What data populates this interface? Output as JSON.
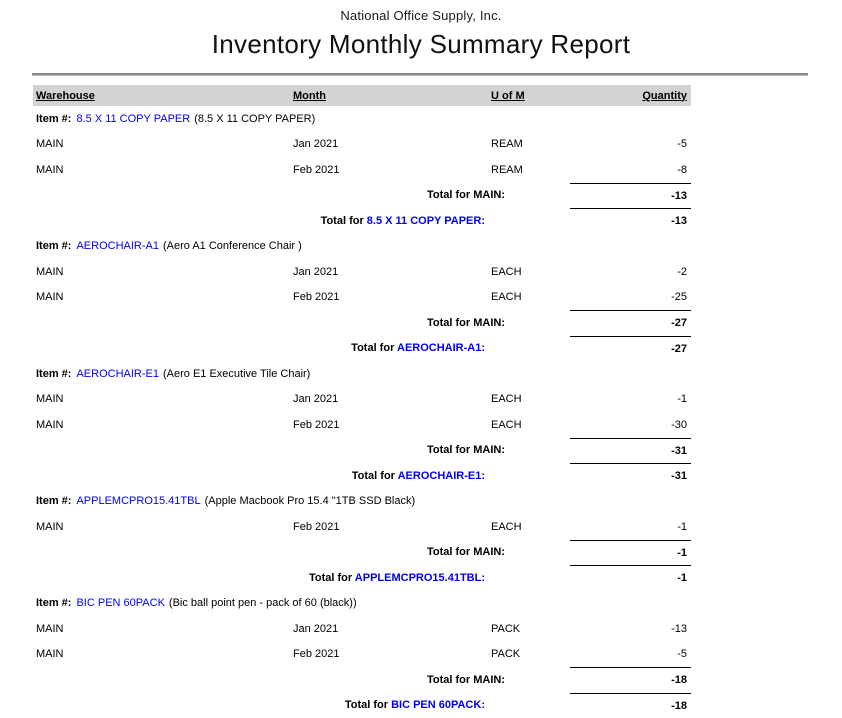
{
  "report": {
    "company_name": "National Office Supply, Inc.",
    "title": "Inventory Monthly Summary Report",
    "columns": {
      "warehouse": "Warehouse",
      "month": "Month",
      "uom": "U of M",
      "quantity": "Quantity"
    },
    "labels": {
      "item_prefix": "Item #:",
      "total_prefix": "Total for"
    },
    "colors": {
      "link_blue": "#0000ee",
      "header_band_gray": "#d3d3d3",
      "rule_gray": "#8a8a8a"
    },
    "items": [
      {
        "code": "8.5 X 11 COPY PAPER",
        "description": "(8.5 X 11 COPY PAPER)",
        "rows": [
          {
            "warehouse": "MAIN",
            "month": "Jan 2021",
            "uom": "REAM",
            "quantity": "-5"
          },
          {
            "warehouse": "MAIN",
            "month": "Feb 2021",
            "uom": "REAM",
            "quantity": "-8"
          }
        ],
        "warehouse_total": {
          "label": "Total for MAIN:",
          "quantity": "-13"
        },
        "item_total": {
          "quantity": "-13"
        }
      },
      {
        "code": "AEROCHAIR-A1",
        "description": "(Aero A1 Conference Chair )",
        "rows": [
          {
            "warehouse": "MAIN",
            "month": "Jan 2021",
            "uom": "EACH",
            "quantity": "-2"
          },
          {
            "warehouse": "MAIN",
            "month": "Feb 2021",
            "uom": "EACH",
            "quantity": "-25"
          }
        ],
        "warehouse_total": {
          "label": "Total for MAIN:",
          "quantity": "-27"
        },
        "item_total": {
          "quantity": "-27"
        }
      },
      {
        "code": "AEROCHAIR-E1",
        "description": "(Aero E1 Executive Tile Chair)",
        "rows": [
          {
            "warehouse": "MAIN",
            "month": "Jan 2021",
            "uom": "EACH",
            "quantity": "-1"
          },
          {
            "warehouse": "MAIN",
            "month": "Feb 2021",
            "uom": "EACH",
            "quantity": "-30"
          }
        ],
        "warehouse_total": {
          "label": "Total for MAIN:",
          "quantity": "-31"
        },
        "item_total": {
          "quantity": "-31"
        }
      },
      {
        "code": "APPLEMCPRO15.41TBL",
        "description": "(Apple Macbook Pro 15.4 \"1TB SSD Black)",
        "rows": [
          {
            "warehouse": "MAIN",
            "month": "Feb 2021",
            "uom": "EACH",
            "quantity": "-1"
          }
        ],
        "warehouse_total": {
          "label": "Total for MAIN:",
          "quantity": "-1"
        },
        "item_total": {
          "quantity": "-1"
        }
      },
      {
        "code": "BIC PEN 60PACK",
        "description": "(Bic ball point pen - pack of 60 (black))",
        "rows": [
          {
            "warehouse": "MAIN",
            "month": "Jan 2021",
            "uom": "PACK",
            "quantity": "-13"
          },
          {
            "warehouse": "MAIN",
            "month": "Feb 2021",
            "uom": "PACK",
            "quantity": "-5"
          }
        ],
        "warehouse_total": {
          "label": "Total for MAIN:",
          "quantity": "-18"
        },
        "item_total": {
          "quantity": "-18"
        }
      }
    ]
  }
}
